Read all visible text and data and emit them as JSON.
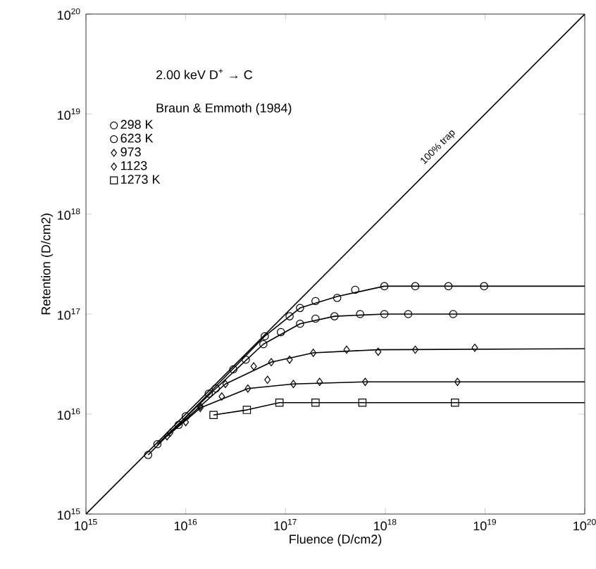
{
  "chart_data": {
    "type": "scatter",
    "xlabel": "Fluence (D/cm2)",
    "ylabel": "Retention (D/cm2)",
    "annotations": [
      "2.00 keV D$^{+}$ → C",
      "Braun & Emmoth (1984)"
    ],
    "log": "xy",
    "legend": "top left",
    "xlim": [
      1000000000000000.0,
      1e+20
    ],
    "ylim": [
      1000000000000000.0,
      1e+20
    ],
    "xticks": [
      {
        "value": 1000000000000000.0,
        "label": "10$^{15}$"
      },
      {
        "value": 1e+16,
        "label": "10$^{16}$"
      },
      {
        "value": 1e+17,
        "label": "10$^{17}$"
      },
      {
        "value": 1e+18,
        "label": "10$^{18}$"
      },
      {
        "value": 1e+19,
        "label": "10$^{19}$"
      },
      {
        "value": 1e+20,
        "label": "10$^{20}$"
      }
    ],
    "yticks": [
      {
        "value": 1000000000000000.0,
        "label": "10$^{15}$"
      },
      {
        "value": 1e+16,
        "label": "10$^{16}$"
      },
      {
        "value": 1e+17,
        "label": "10$^{17}$"
      },
      {
        "value": 1e+18,
        "label": "10$^{18}$"
      },
      {
        "value": 1e+19,
        "label": "10$^{19}$"
      },
      {
        "value": 1e+20,
        "label": "10$^{20}$"
      }
    ],
    "series": [
      {
        "name": "298 K",
        "marker": "circle",
        "color": "#000000",
        "x": [
          4200000000000000.0,
          8500000000000000.0,
          1.7e+16,
          3e+16,
          6.2e+16,
          1.1e+17,
          1.4e+17,
          2e+17,
          3.3e+17,
          5e+17,
          9.8e+17,
          2e+18,
          4.3e+18,
          9.8e+18
        ],
        "values": [
          3900000000000000.0,
          7800000000000000.0,
          1.6e+16,
          2.8e+16,
          6e+16,
          9.5e+16,
          1.15e+17,
          1.35e+17,
          1.45e+17,
          1.75e+17,
          1.9e+17,
          1.9e+17,
          1.9e+17,
          1.9e+17
        ]
      },
      {
        "name": "623 K",
        "marker": "circle",
        "color": "#000000",
        "x": [
          5200000000000000.0,
          1e+16,
          2e+16,
          4e+16,
          6e+16,
          9e+16,
          1.4e+17,
          2e+17,
          3.1e+17,
          5.6e+17,
          9.8e+17,
          1.7e+18,
          4.8e+18
        ],
        "values": [
          5000000000000000.0,
          9500000000000000.0,
          1.8e+16,
          3.5e+16,
          5e+16,
          6.6e+16,
          8e+16,
          9e+16,
          9.5e+16,
          1e+17,
          1e+17,
          1e+17,
          1e+17
        ]
      },
      {
        "name": "973",
        "marker": "diamond",
        "color": "#000000",
        "x": [
          7000000000000000.0,
          1.4e+16,
          2.5e+16,
          4.8e+16,
          7.2e+16,
          1.1e+17,
          1.9e+17,
          4.1e+17,
          8.5e+17,
          2e+18,
          7.9e+18
        ],
        "values": [
          6500000000000000.0,
          1.2e+16,
          2e+16,
          3e+16,
          3.3e+16,
          3.5e+16,
          4.1e+16,
          4.4e+16,
          4.2e+16,
          4.4e+16,
          4.6e+16
        ]
      },
      {
        "name": "1123",
        "marker": "diamond",
        "color": "#000000",
        "x": [
          6500000000000000.0,
          1e+16,
          1.4e+16,
          2.3e+16,
          4.2e+16,
          6.6e+16,
          1.2e+17,
          2.2e+17,
          6.3e+17,
          5.3e+18
        ],
        "values": [
          6000000000000000.0,
          8300000000000000.0,
          1.15e+16,
          1.5e+16,
          1.8e+16,
          2.2e+16,
          2e+16,
          2.1e+16,
          2.1e+16,
          2.1e+16
        ]
      },
      {
        "name": "1273 K",
        "marker": "square",
        "color": "#000000",
        "x": [
          1.9e+16,
          4.1e+16,
          8.7e+16,
          2e+17,
          5.9e+17,
          5e+18
        ],
        "values": [
          9800000000000000.0,
          1.1e+16,
          1.3e+16,
          1.3e+16,
          1.3e+16,
          1.3e+16
        ]
      },
      {
        "type": "line",
        "line_style": "solid",
        "color": "#000000",
        "x": [
          4200000000000000.0,
          1.7e+16,
          6.2e+16,
          1.4e+17,
          3.3e+17,
          9.8e+17,
          1e+20
        ],
        "values": [
          3900000000000000.0,
          1.6e+16,
          6e+16,
          1.15e+17,
          1.5e+17,
          1.9e+17,
          1.9e+17
        ]
      },
      {
        "type": "line",
        "line_style": "solid",
        "color": "#000000",
        "x": [
          5200000000000000.0,
          2e+16,
          6e+16,
          1.4e+17,
          3.1e+17,
          9.8e+17,
          1e+20
        ],
        "values": [
          5000000000000000.0,
          1.8e+16,
          5e+16,
          8e+16,
          9.5e+16,
          1e+17,
          1e+17
        ]
      },
      {
        "type": "line",
        "line_style": "solid",
        "color": "#000000",
        "x": [
          7000000000000000.0,
          2.5e+16,
          7.2e+16,
          1.9e+17,
          8.5e+17,
          1e+20
        ],
        "values": [
          6500000000000000.0,
          2e+16,
          3.3e+16,
          4.1e+16,
          4.4e+16,
          4.5e+16
        ]
      },
      {
        "type": "line",
        "line_style": "solid",
        "color": "#000000",
        "x": [
          6500000000000000.0,
          1.4e+16,
          4.2e+16,
          1.2e+17,
          6.3e+17,
          1e+20
        ],
        "values": [
          6000000000000000.0,
          1.15e+16,
          1.8e+16,
          2e+16,
          2.1e+16,
          2.1e+16
        ]
      },
      {
        "type": "line",
        "line_style": "solid",
        "color": "#000000",
        "x": [
          1.9e+16,
          4.1e+16,
          8.7e+16,
          2e+17,
          1e+20
        ],
        "values": [
          9800000000000000.0,
          1.1e+16,
          1.3e+16,
          1.3e+16,
          1.3e+16
        ]
      },
      {
        "name": "100% trap",
        "type": "line",
        "line_style": "solid",
        "color": "#000000",
        "x": [
          1000000000000000.0,
          1e+20
        ],
        "values": [
          1000000000000000.0,
          1e+20
        ]
      }
    ]
  }
}
